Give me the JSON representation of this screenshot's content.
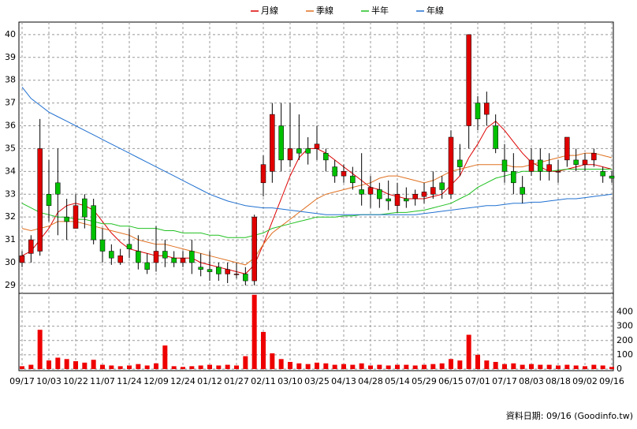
{
  "chart_data": [
    {
      "type": "candlestick",
      "up_color": "#e00000",
      "down_color": "#00c000",
      "ylim": [
        28.65,
        40.55
      ],
      "yticks": [
        29,
        30,
        31,
        32,
        33,
        34,
        35,
        36,
        37,
        38,
        39,
        40
      ],
      "grid": true,
      "open": [
        30,
        30.4,
        30.5,
        33,
        33.5,
        32,
        31.5,
        32.8,
        32.5,
        31,
        30.5,
        30,
        30.8,
        30.5,
        30,
        30,
        30.5,
        30.2,
        30,
        30.5,
        29.8,
        29.7,
        29.8,
        29.5,
        29.5,
        29.5,
        29.2,
        33.5,
        34,
        36,
        34.5,
        35,
        35,
        35,
        34.8,
        34.2,
        33.8,
        33.8,
        33.2,
        33,
        33.2,
        32.8,
        32.5,
        32.8,
        32.8,
        32.9,
        33,
        33.5,
        33,
        34.5,
        36,
        37,
        36.5,
        36,
        34.5,
        34,
        33.3,
        34,
        34.5,
        34,
        34,
        34.5,
        34.5,
        34.3,
        34.5,
        34,
        33.8
      ],
      "high": [
        30.5,
        31.2,
        36.3,
        34.5,
        35,
        32.8,
        33,
        33,
        32.8,
        31.5,
        30.8,
        30.6,
        31.5,
        31.2,
        30.4,
        31.6,
        31,
        30.5,
        30.5,
        31,
        30.4,
        30.5,
        30,
        30,
        30,
        29.8,
        32.1,
        34.7,
        37,
        37,
        37,
        36.5,
        35.5,
        36,
        35,
        34.5,
        34.3,
        34.2,
        34.8,
        33.8,
        33.5,
        33.6,
        33.5,
        33.3,
        33.2,
        33.5,
        34,
        33.8,
        35.8,
        35.2,
        40,
        37.3,
        37.5,
        36.5,
        35.2,
        34.8,
        33.8,
        35,
        35,
        34.8,
        34.5,
        35.5,
        35,
        34.8,
        35,
        34.2,
        34
      ],
      "low": [
        29.8,
        30,
        30.3,
        31.8,
        31.2,
        31,
        31.5,
        31.5,
        30.8,
        30,
        29.9,
        29.9,
        30.2,
        29.7,
        29.5,
        29.6,
        29.8,
        29.8,
        29.8,
        29.5,
        29.4,
        29.2,
        29.2,
        29.1,
        29.3,
        29,
        29,
        32.9,
        33.5,
        34,
        34.2,
        34.5,
        34.3,
        34.5,
        34,
        33.5,
        33.5,
        33.2,
        32.5,
        32.4,
        32.4,
        32.3,
        32.2,
        32.4,
        32.5,
        32.6,
        32.8,
        32.8,
        32.8,
        33.8,
        35,
        35.8,
        36,
        34.8,
        33.5,
        33,
        32.6,
        33.8,
        33.6,
        33.6,
        33.5,
        34.2,
        34,
        34,
        34.2,
        33.5,
        33.5
      ],
      "close": [
        30.3,
        31,
        35,
        32.5,
        33,
        31.8,
        32.5,
        32,
        31,
        30.5,
        30.2,
        30.3,
        30.6,
        30,
        29.7,
        30.5,
        30.2,
        30,
        30.2,
        30,
        29.7,
        29.6,
        29.5,
        29.7,
        29.5,
        29.2,
        32,
        34.3,
        36.5,
        34.5,
        35,
        34.8,
        34.8,
        35.2,
        34.5,
        33.8,
        34,
        33.5,
        33,
        33.3,
        32.8,
        32.7,
        33,
        32.7,
        33,
        33.1,
        33.3,
        33.2,
        35.5,
        34.2,
        40,
        36.3,
        37,
        35,
        34,
        33.5,
        33,
        34.5,
        34,
        34.3,
        34,
        35.5,
        34.3,
        34.5,
        34.8,
        33.8,
        33.7
      ],
      "series": [
        {
          "name": "月線",
          "color": "#dd0000",
          "values": [
            30.3,
            30.5,
            31,
            31.5,
            32.2,
            32.5,
            32.6,
            32.5,
            32.3,
            31.8,
            31.3,
            30.9,
            30.6,
            30.5,
            30.4,
            30.3,
            30.3,
            30.2,
            30.2,
            30.2,
            30,
            29.9,
            29.8,
            29.7,
            29.6,
            29.5,
            29.9,
            30.8,
            31.8,
            32.8,
            33.8,
            34.6,
            35,
            35,
            34.8,
            34.5,
            34.2,
            33.9,
            33.6,
            33.3,
            33.2,
            33,
            32.9,
            32.8,
            32.8,
            32.8,
            32.9,
            33,
            33.4,
            33.8,
            34.6,
            35.2,
            35.9,
            36.2,
            35.8,
            35.3,
            34.8,
            34.4,
            34.2,
            34,
            34,
            34.1,
            34.2,
            34.3,
            34.3,
            34.2,
            34.1
          ]
        },
        {
          "name": "季線",
          "color": "#e07020",
          "values": [
            31.5,
            31.4,
            31.5,
            31.6,
            31.8,
            31.8,
            31.8,
            31.7,
            31.6,
            31.5,
            31.4,
            31.3,
            31.2,
            31,
            30.9,
            30.8,
            30.8,
            30.7,
            30.6,
            30.5,
            30.4,
            30.3,
            30.2,
            30.1,
            30,
            29.9,
            30.2,
            30.8,
            31.3,
            31.6,
            31.9,
            32.2,
            32.5,
            32.8,
            33,
            33.1,
            33.2,
            33.3,
            33.4,
            33.5,
            33.7,
            33.8,
            33.8,
            33.7,
            33.6,
            33.5,
            33.6,
            33.8,
            34,
            34.1,
            34.2,
            34.3,
            34.3,
            34.3,
            34.3,
            34.2,
            34.2,
            34.3,
            34.4,
            34.5,
            34.6,
            34.7,
            34.7,
            34.8,
            34.8,
            34.7,
            34.6
          ]
        },
        {
          "name": "半年",
          "color": "#20c020",
          "values": [
            32.6,
            32.4,
            32.2,
            32.1,
            32,
            32,
            31.9,
            31.9,
            31.8,
            31.7,
            31.7,
            31.6,
            31.6,
            31.5,
            31.5,
            31.5,
            31.4,
            31.4,
            31.3,
            31.3,
            31.3,
            31.2,
            31.2,
            31.1,
            31.1,
            31.1,
            31.2,
            31.3,
            31.5,
            31.6,
            31.7,
            31.8,
            31.9,
            32,
            32,
            32,
            32.05,
            32.05,
            32.1,
            32.1,
            32.1,
            32.15,
            32.2,
            32.2,
            32.25,
            32.3,
            32.4,
            32.5,
            32.6,
            32.8,
            33,
            33.3,
            33.5,
            33.7,
            33.8,
            33.9,
            34,
            34,
            34,
            34,
            34.05,
            34.1,
            34.1,
            34.1,
            34.1,
            34.1,
            34.1
          ]
        },
        {
          "name": "年線",
          "color": "#2070d0",
          "values": [
            37.7,
            37.2,
            36.9,
            36.6,
            36.4,
            36.2,
            36,
            35.8,
            35.6,
            35.4,
            35.2,
            35,
            34.8,
            34.6,
            34.4,
            34.2,
            34,
            33.8,
            33.6,
            33.4,
            33.2,
            33,
            32.85,
            32.7,
            32.6,
            32.5,
            32.45,
            32.4,
            32.4,
            32.35,
            32.3,
            32.25,
            32.2,
            32.15,
            32.1,
            32.1,
            32.1,
            32.1,
            32.1,
            32.1,
            32.1,
            32.1,
            32.1,
            32.1,
            32.1,
            32.15,
            32.2,
            32.25,
            32.3,
            32.35,
            32.4,
            32.45,
            32.5,
            32.5,
            32.55,
            32.6,
            32.6,
            32.65,
            32.65,
            32.7,
            32.75,
            32.8,
            32.8,
            32.85,
            32.9,
            32.95,
            33
          ]
        }
      ]
    },
    {
      "type": "bar",
      "color": "#ee0000",
      "categories": [
        "09/17",
        null,
        null,
        "10/03",
        null,
        null,
        "10/22",
        null,
        null,
        "11/07",
        null,
        null,
        "11/24",
        null,
        null,
        "12/09",
        null,
        null,
        "12/24",
        null,
        null,
        "01/12",
        null,
        null,
        "01/27",
        null,
        null,
        "02/11",
        null,
        null,
        "03/10",
        null,
        null,
        "03/25",
        null,
        null,
        "04/13",
        null,
        null,
        "04/28",
        null,
        null,
        "05/14",
        null,
        null,
        "05/29",
        null,
        null,
        "06/15",
        null,
        null,
        "07/01",
        null,
        null,
        "07/17",
        null,
        null,
        "08/03",
        null,
        null,
        "08/18",
        null,
        null,
        "09/02",
        null,
        null,
        "09/16"
      ],
      "values": [
        20,
        30,
        275,
        60,
        80,
        70,
        55,
        45,
        65,
        30,
        25,
        20,
        25,
        35,
        25,
        40,
        165,
        20,
        15,
        20,
        25,
        30,
        25,
        30,
        25,
        90,
        520,
        260,
        110,
        70,
        50,
        40,
        35,
        45,
        40,
        30,
        35,
        30,
        40,
        25,
        30,
        25,
        30,
        30,
        25,
        30,
        35,
        40,
        70,
        60,
        240,
        100,
        60,
        50,
        35,
        40,
        30,
        35,
        30,
        30,
        25,
        30,
        25,
        20,
        30,
        25,
        15
      ],
      "ylim": [
        0,
        530
      ],
      "yticks": [
        0,
        100,
        200,
        300,
        400
      ],
      "grid": true,
      "footer": "資料日期: 09/16  (Goodinfo.tw)"
    }
  ]
}
